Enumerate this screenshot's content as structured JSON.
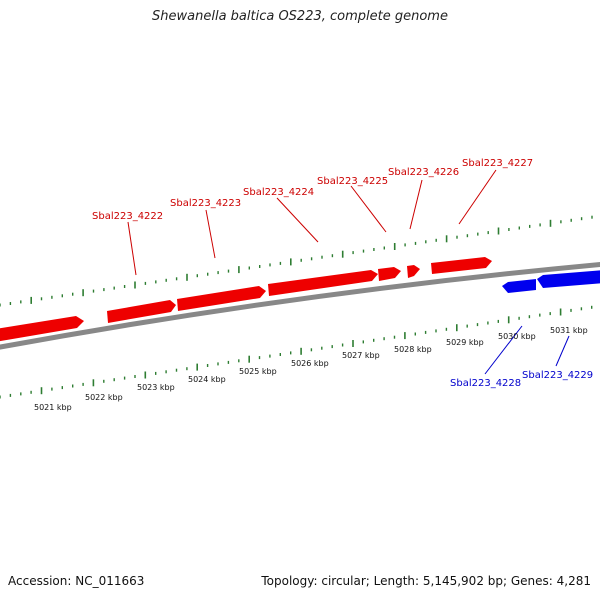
{
  "title": "Shewanella baltica OS223, complete genome",
  "footer": {
    "accession": "Accession: NC_011663",
    "summary": "Topology: circular; Length: 5,145,902 bp; Genes: 4,281"
  },
  "colors": {
    "forward_gene": "#ee0000",
    "reverse_gene": "#0000ee",
    "backbone": "#888888",
    "ticks": "#2e7d32",
    "forward_label": "#cc0000",
    "reverse_label": "#0000cc"
  },
  "scale_labels": [
    "5021 kbp",
    "5022 kbp",
    "5023 kbp",
    "5024 kbp",
    "5025 kbp",
    "5026 kbp",
    "5027 kbp",
    "5028 kbp",
    "5029 kbp",
    "5030 kbp",
    "5031 kbp"
  ],
  "forward_genes": [
    {
      "label": "Sbal223_4222"
    },
    {
      "label": "Sbal223_4223"
    },
    {
      "label": "Sbal223_4224"
    },
    {
      "label": "Sbal223_4225"
    },
    {
      "label": "Sbal223_4226"
    },
    {
      "label": "Sbal223_4227"
    }
  ],
  "reverse_genes": [
    {
      "label": "Sbal223_4228"
    },
    {
      "label": "Sbal223_4229"
    }
  ]
}
